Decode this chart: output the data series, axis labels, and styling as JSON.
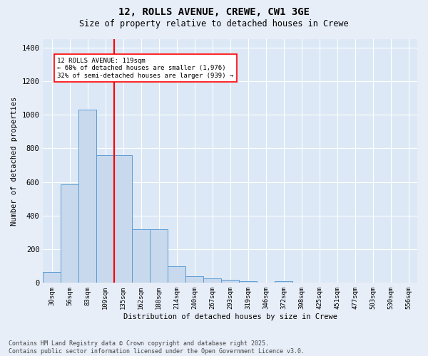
{
  "title": "12, ROLLS AVENUE, CREWE, CW1 3GE",
  "subtitle": "Size of property relative to detached houses in Crewe",
  "xlabel": "Distribution of detached houses by size in Crewe",
  "ylabel": "Number of detached properties",
  "categories": [
    "30sqm",
    "56sqm",
    "83sqm",
    "109sqm",
    "135sqm",
    "162sqm",
    "188sqm",
    "214sqm",
    "240sqm",
    "267sqm",
    "293sqm",
    "319sqm",
    "346sqm",
    "372sqm",
    "398sqm",
    "425sqm",
    "451sqm",
    "477sqm",
    "503sqm",
    "530sqm",
    "556sqm"
  ],
  "values": [
    65,
    585,
    1030,
    760,
    760,
    320,
    320,
    100,
    38,
    25,
    18,
    12,
    0,
    12,
    0,
    0,
    0,
    0,
    0,
    0,
    0
  ],
  "bar_color": "#c8d9ed",
  "bar_edge_color": "#5b9bd5",
  "annotation_line1": "12 ROLLS AVENUE: 119sqm",
  "annotation_line2": "← 68% of detached houses are smaller (1,976)",
  "annotation_line3": "32% of semi-detached houses are larger (939) →",
  "red_line_x": 3.5,
  "ylim": [
    0,
    1450
  ],
  "yticks": [
    0,
    200,
    400,
    600,
    800,
    1000,
    1200,
    1400
  ],
  "footer_line1": "Contains HM Land Registry data © Crown copyright and database right 2025.",
  "footer_line2": "Contains public sector information licensed under the Open Government Licence v3.0.",
  "plot_bg_color": "#dce8f5",
  "fig_bg_color": "#e8eef8"
}
